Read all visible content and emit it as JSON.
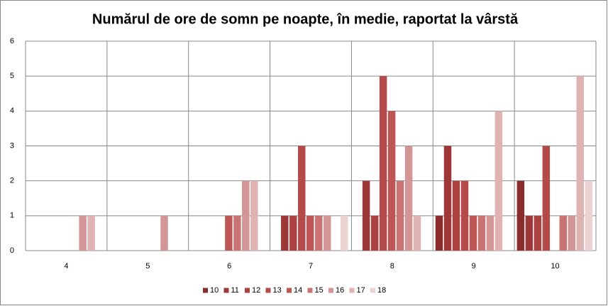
{
  "chart_data": {
    "type": "bar",
    "title": "Numărul de ore de somn pe noapte,  în medie, raportat la vârstă",
    "categories": [
      "4",
      "5",
      "6",
      "7",
      "8",
      "9",
      "10"
    ],
    "series": [
      {
        "name": "10",
        "color": "#8b2c2c",
        "values": [
          0,
          0,
          0,
          0,
          0,
          1,
          2
        ]
      },
      {
        "name": "11",
        "color": "#9e3737",
        "values": [
          0,
          0,
          0,
          1,
          2,
          3,
          1
        ]
      },
      {
        "name": "12",
        "color": "#ac4141",
        "values": [
          0,
          0,
          0,
          1,
          1,
          2,
          1
        ]
      },
      {
        "name": "13",
        "color": "#b54a4a",
        "values": [
          0,
          0,
          0,
          3,
          5,
          2,
          3
        ]
      },
      {
        "name": "14",
        "color": "#bf5656",
        "values": [
          0,
          0,
          1,
          1,
          4,
          1,
          0
        ]
      },
      {
        "name": "15",
        "color": "#c97373",
        "values": [
          0,
          0,
          1,
          1,
          2,
          1,
          1
        ]
      },
      {
        "name": "16",
        "color": "#d39595",
        "values": [
          1,
          1,
          2,
          1,
          3,
          1,
          1
        ]
      },
      {
        "name": "17",
        "color": "#e0b3b3",
        "values": [
          1,
          0,
          2,
          0,
          1,
          4,
          5
        ]
      },
      {
        "name": "18",
        "color": "#ecd2d2",
        "values": [
          0,
          0,
          0,
          1,
          0,
          0,
          2
        ]
      }
    ],
    "ylim": [
      0,
      6
    ],
    "yticks": [
      0,
      1,
      2,
      3,
      4,
      5,
      6
    ],
    "grid": true
  }
}
